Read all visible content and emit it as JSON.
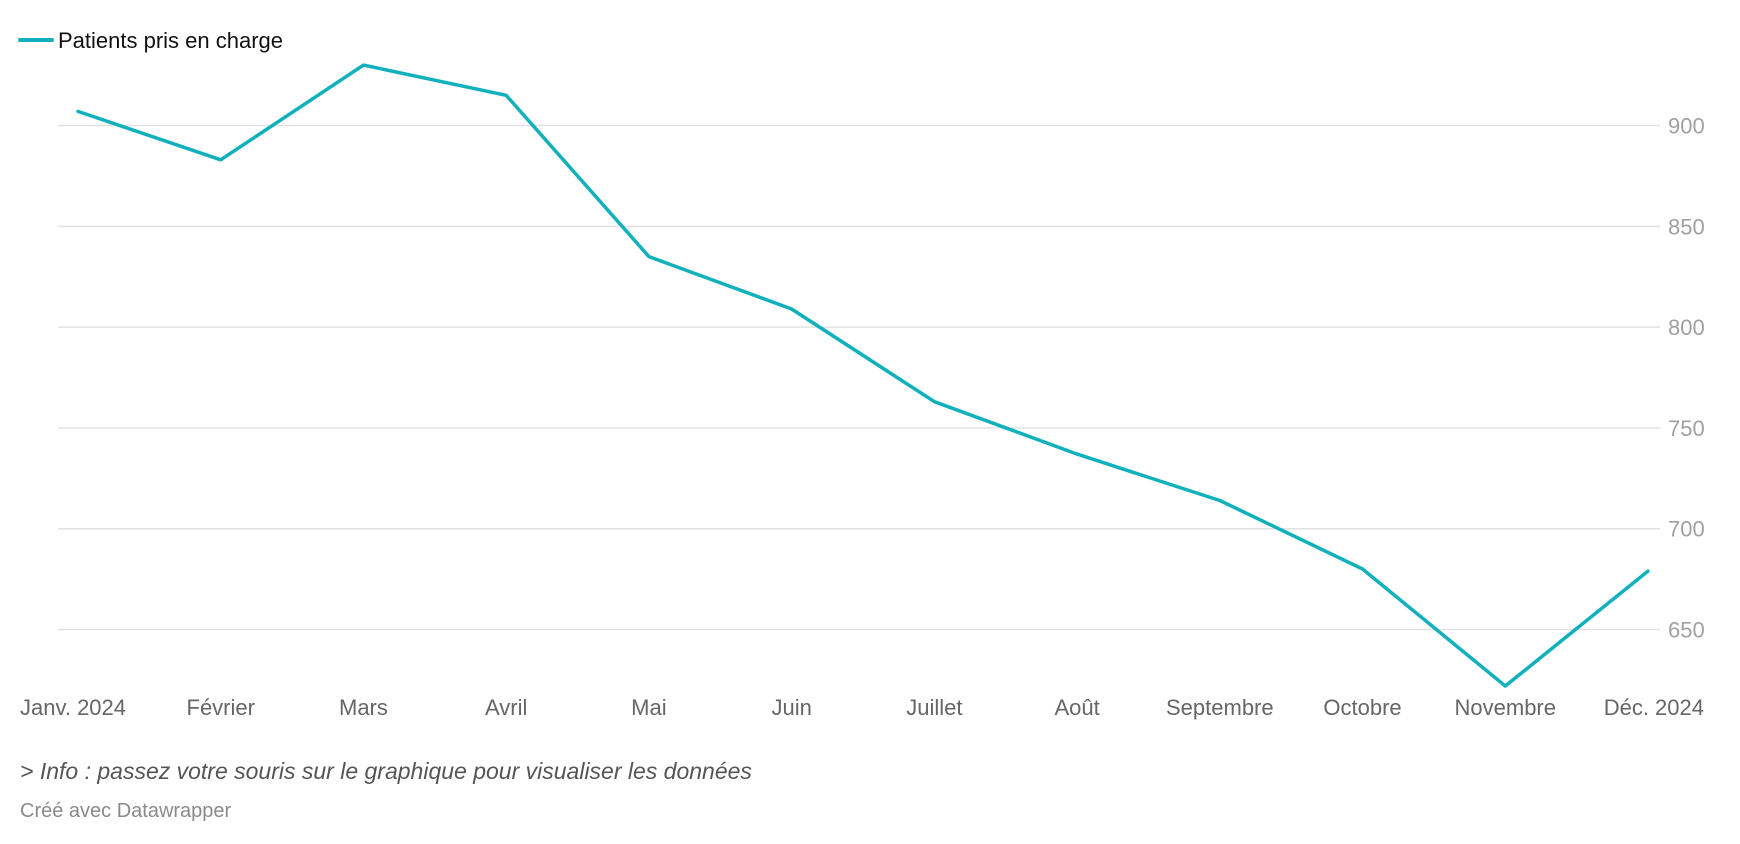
{
  "chart_data": {
    "type": "line",
    "categories": [
      "Janv. 2024",
      "Février",
      "Mars",
      "Avril",
      "Mai",
      "Juin",
      "Juillet",
      "Août",
      "Septembre",
      "Octobre",
      "Novembre",
      "Déc. 2024"
    ],
    "series": [
      {
        "name": "Patients pris en charge",
        "values": [
          907,
          883,
          930,
          915,
          835,
          809,
          763,
          737,
          714,
          680,
          622,
          679
        ]
      }
    ],
    "yticks": [
      650,
      700,
      750,
      800,
      850,
      900
    ],
    "ylim": [
      620,
      935
    ],
    "ytick_position": "right",
    "grid": true,
    "legend": "top-left",
    "line_color": "#10b0bd"
  },
  "footer": {
    "note": "> Info : passez votre souris sur le graphique pour visualiser les données",
    "credit": "Créé avec Datawrapper"
  }
}
